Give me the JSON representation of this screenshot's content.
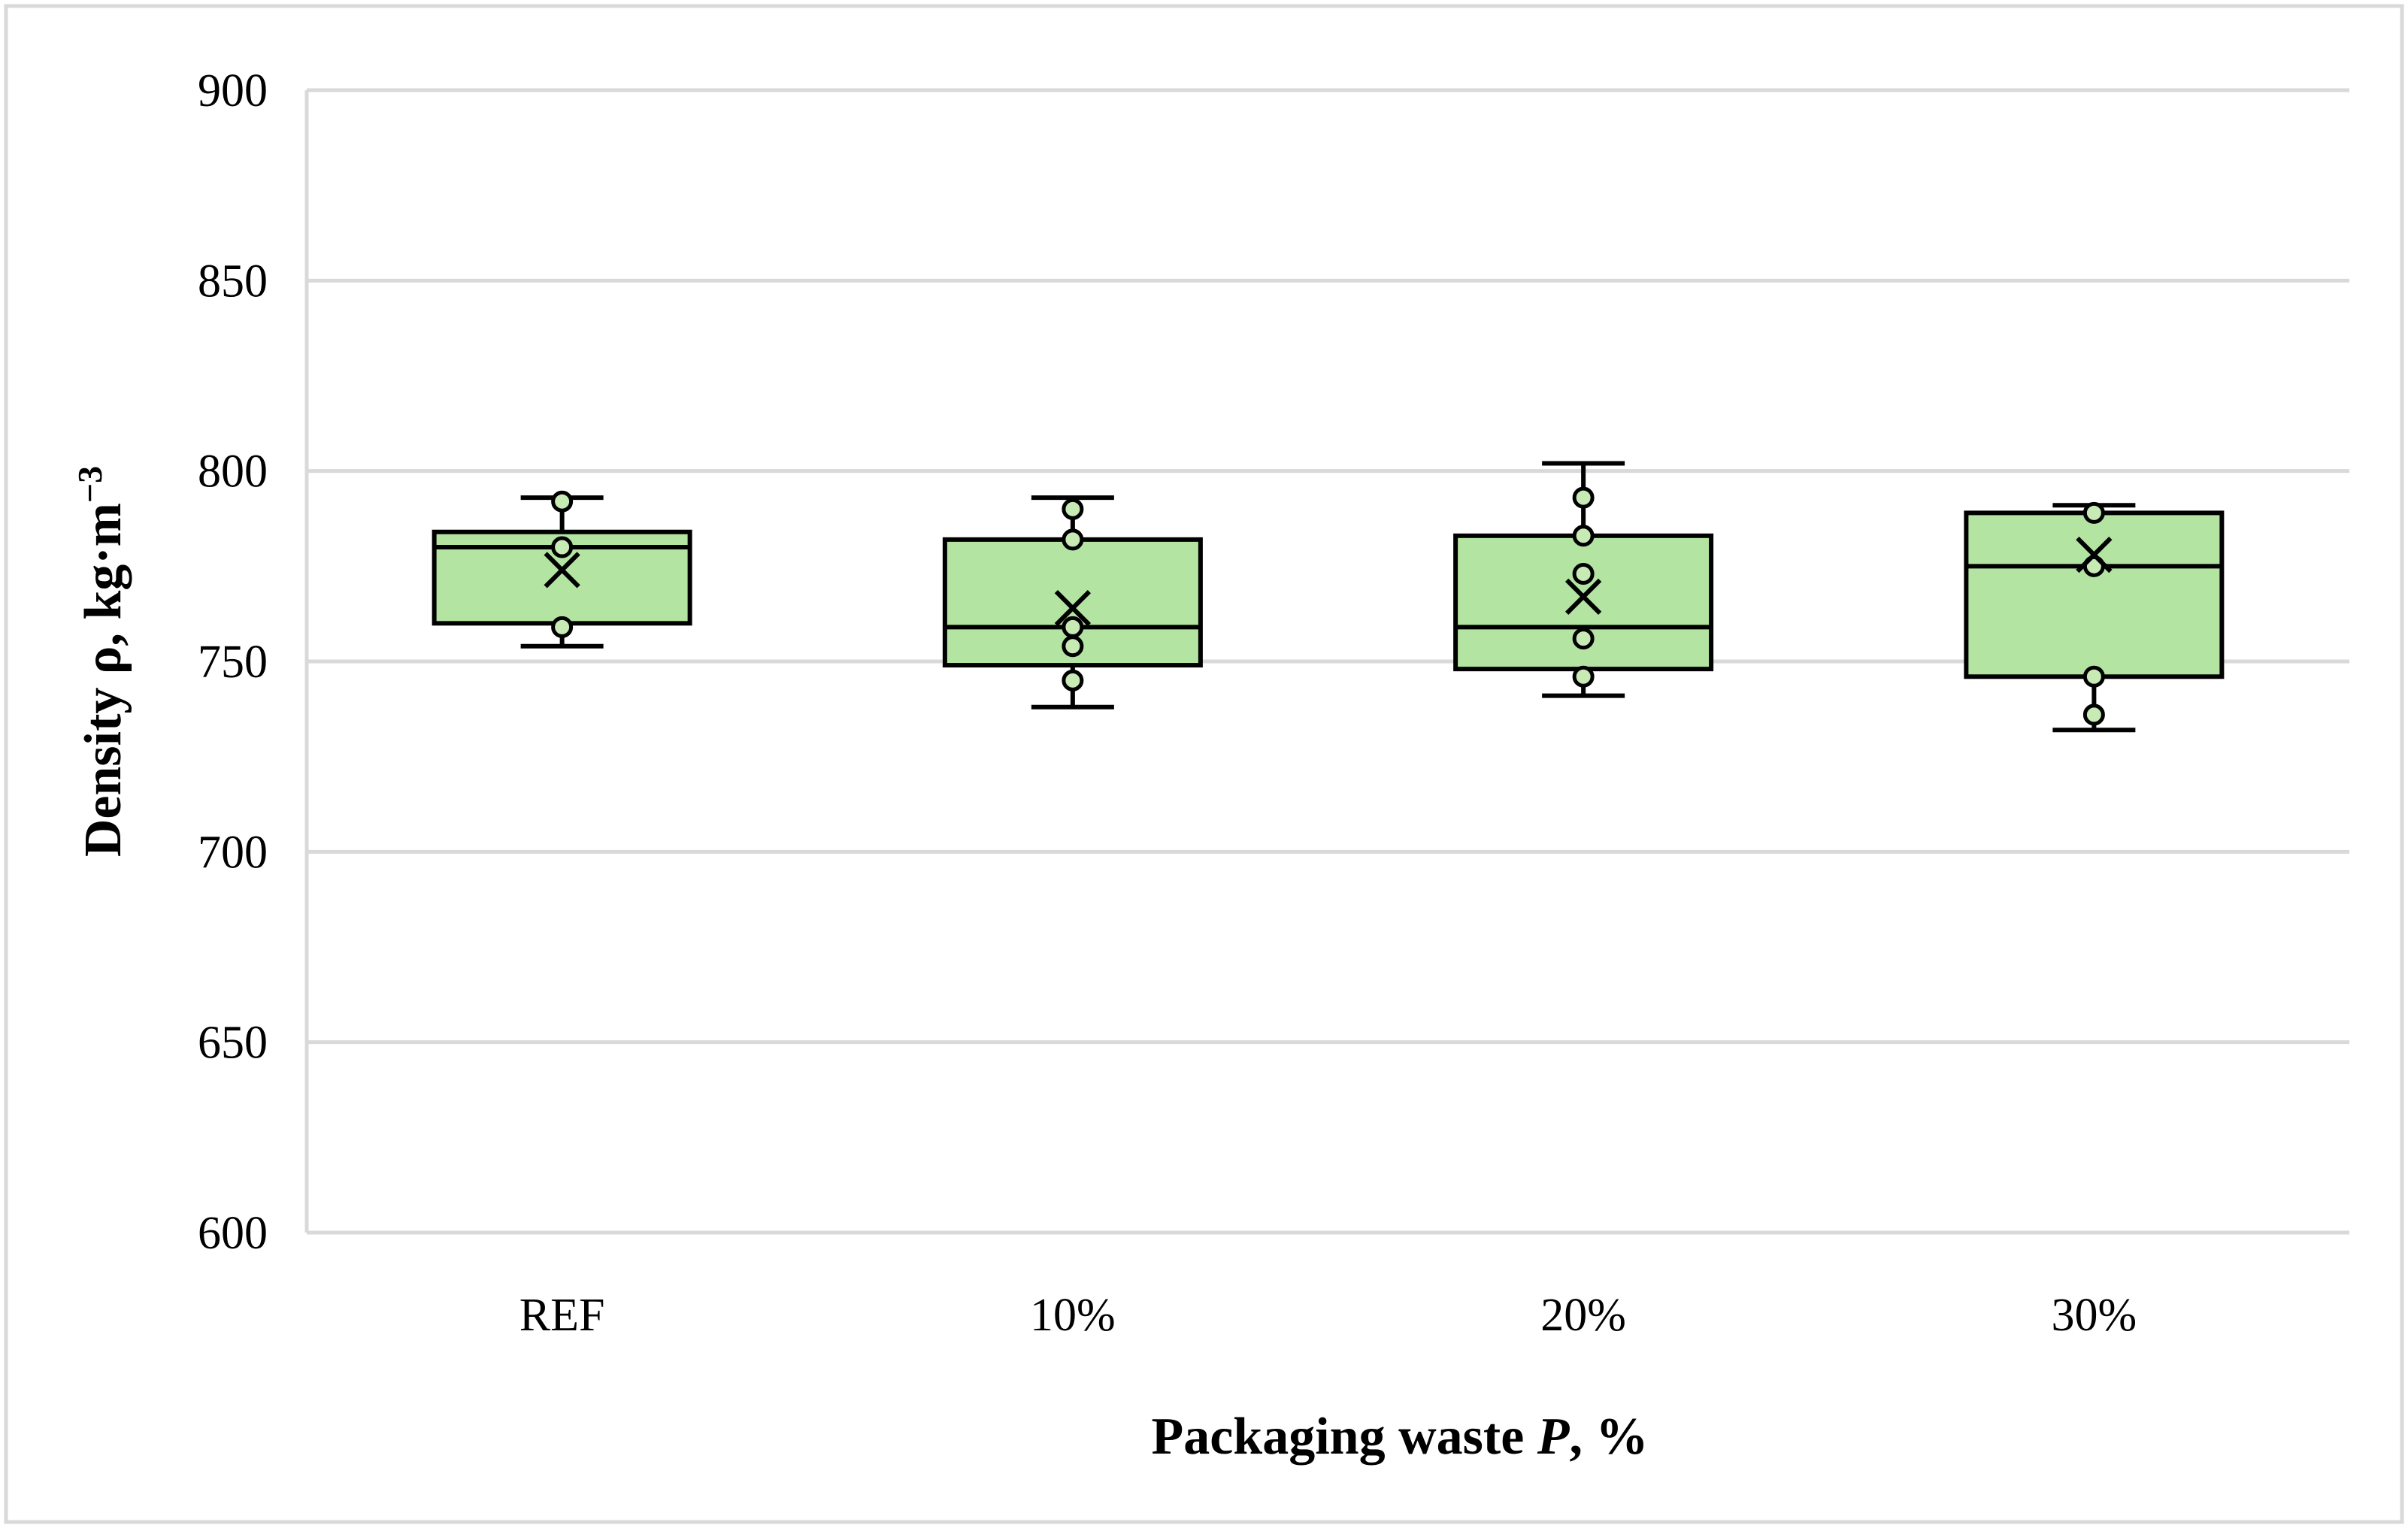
{
  "chart_data": {
    "type": "box",
    "xlabel": "Packaging waste P, %",
    "xlabel_parts": {
      "before": "Packaging waste ",
      "italic": "P",
      "after": ", %"
    },
    "ylabel": "Density ρ, kg·m−3",
    "ylabel_parts": {
      "main": "Density ρ, kg·m",
      "sup": "−3"
    },
    "ylim": [
      600,
      900
    ],
    "yticks": [
      600,
      650,
      700,
      750,
      800,
      850,
      900
    ],
    "grid": true,
    "legend": "none",
    "categories": [
      "REF",
      "10%",
      "20%",
      "30%"
    ],
    "boxes": [
      {
        "category": "REF",
        "min": 754,
        "q1": 760,
        "median": 780,
        "q3": 784,
        "max": 793,
        "mean": 774,
        "points": [
          792,
          780,
          759
        ]
      },
      {
        "category": "10%",
        "min": 738,
        "q1": 749,
        "median": 759,
        "q3": 782,
        "max": 793,
        "mean": 764,
        "points": [
          790,
          782,
          759,
          754,
          745
        ]
      },
      {
        "category": "20%",
        "min": 741,
        "q1": 748,
        "median": 759,
        "q3": 783,
        "max": 802,
        "mean": 767,
        "points": [
          793,
          783,
          773,
          756,
          746
        ]
      },
      {
        "category": "30%",
        "min": 732,
        "q1": 746,
        "median": 775,
        "q3": 789,
        "max": 791,
        "mean": 778,
        "points": [
          789,
          775,
          746,
          736
        ]
      }
    ],
    "colors": {
      "box_fill": "#b3e4a2",
      "outline": "#000000",
      "point_fill": "#c8eab5",
      "grid": "#d9d9d9",
      "frame": "#d9d9d9"
    }
  }
}
